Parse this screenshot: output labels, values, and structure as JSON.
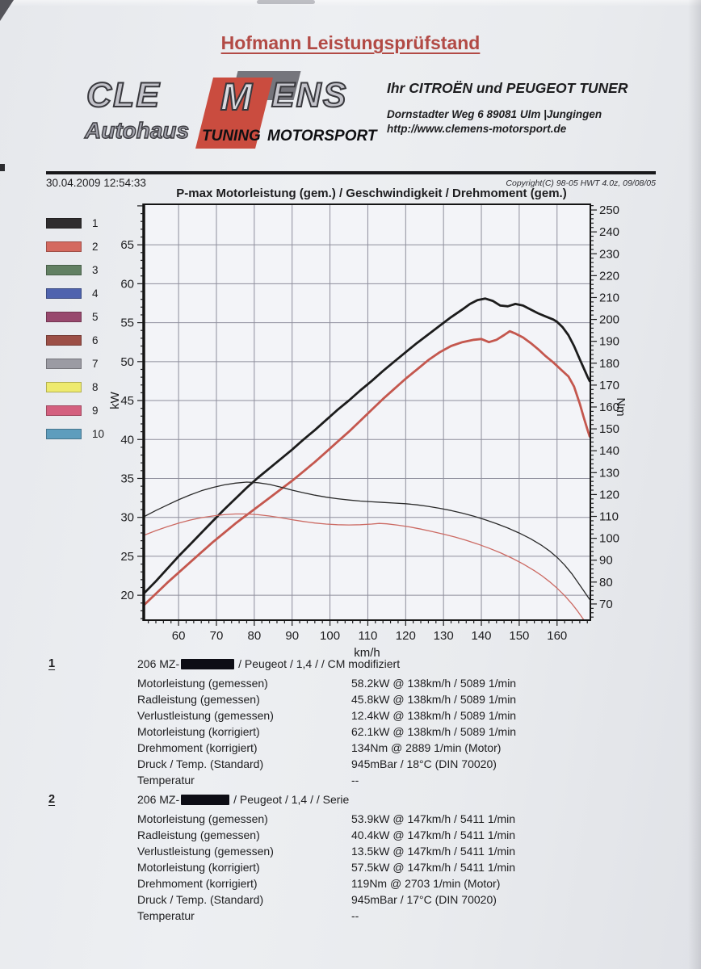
{
  "page": {
    "header_title": "Hofmann Leistungsprüfstand",
    "logo": {
      "cle": "CLE",
      "m": "M",
      "ens": "ENS",
      "autohaus": "Autohaus",
      "tuning": "TUNING",
      "motorsport": "MOTORSPORT"
    },
    "dealer": {
      "line1": "Ihr CITROËN und PEUGEOT TUNER",
      "line2": "Dornstadter Weg 6 89081 Ulm |Jungingen",
      "line3": "http://www.clemens-motorsport.de"
    },
    "datetime": "30.04.2009 12:54:33",
    "copyright": "Copyright(C) 98-05 HWT 4.0z, 09/08/05"
  },
  "chart_data": {
    "type": "line",
    "title": "P-max Motorleistung (gem.) / Geschwindigkeit / Drehmoment (gem.)",
    "xlabel": "km/h",
    "ylabel_left": "kW",
    "ylabel_right": "Nm",
    "grid": true,
    "legend_position": "left-outside",
    "legend": [
      {
        "label": "1",
        "color": "#2f2d2e"
      },
      {
        "label": "2",
        "color": "#d4695f"
      },
      {
        "label": "3",
        "color": "#628063"
      },
      {
        "label": "4",
        "color": "#4f63ae"
      },
      {
        "label": "5",
        "color": "#98486d"
      },
      {
        "label": "6",
        "color": "#9c4f46"
      },
      {
        "label": "7",
        "color": "#9b9ba3"
      },
      {
        "label": "8",
        "color": "#eeea6e"
      },
      {
        "label": "9",
        "color": "#d4607f"
      },
      {
        "label": "10",
        "color": "#5e9dbd"
      }
    ],
    "layout": {
      "x_range": [
        50.8,
        168.8
      ],
      "x_ticks": [
        60,
        70,
        80,
        90,
        100,
        110,
        120,
        130,
        140,
        150,
        160
      ],
      "x_minor_step": 2,
      "kw_range": [
        16.8,
        70.2
      ],
      "kw_ticks": [
        20,
        25,
        30,
        35,
        40,
        45,
        50,
        55,
        60,
        65
      ],
      "kw_minor_step": 1,
      "nm_range": [
        62.6,
        252.6
      ],
      "nm_ticks": [
        70,
        80,
        90,
        100,
        110,
        120,
        130,
        140,
        150,
        160,
        170,
        180,
        190,
        200,
        210,
        220,
        230,
        240,
        250
      ],
      "nm_minor_step": 2
    },
    "series": [
      {
        "name": "Motorleistung 1 (CM modifiziert)",
        "legend": "1",
        "axis": "kw",
        "color": "#1c1c1c",
        "width": 2.8,
        "points": [
          [
            51,
            20.3
          ],
          [
            54,
            21.8
          ],
          [
            57,
            23.4
          ],
          [
            60,
            25
          ],
          [
            63,
            26.5
          ],
          [
            66,
            28
          ],
          [
            69,
            29.5
          ],
          [
            72,
            31
          ],
          [
            75,
            32.4
          ],
          [
            78,
            33.8
          ],
          [
            81,
            35.1
          ],
          [
            84,
            36.3
          ],
          [
            87,
            37.5
          ],
          [
            90,
            38.7
          ],
          [
            93,
            40
          ],
          [
            96,
            41.2
          ],
          [
            99,
            42.5
          ],
          [
            102,
            43.8
          ],
          [
            105,
            45
          ],
          [
            108,
            46.3
          ],
          [
            111,
            47.5
          ],
          [
            114,
            48.8
          ],
          [
            117,
            50
          ],
          [
            120,
            51.2
          ],
          [
            123,
            52.4
          ],
          [
            126,
            53.5
          ],
          [
            129,
            54.6
          ],
          [
            132,
            55.7
          ],
          [
            135,
            56.7
          ],
          [
            137,
            57.4
          ],
          [
            139,
            57.9
          ],
          [
            141,
            58.1
          ],
          [
            143,
            57.8
          ],
          [
            145,
            57.2
          ],
          [
            147,
            57.1
          ],
          [
            149,
            57.4
          ],
          [
            151,
            57.2
          ],
          [
            153,
            56.7
          ],
          [
            155,
            56.2
          ],
          [
            157,
            55.8
          ],
          [
            159,
            55.4
          ],
          [
            160,
            55.1
          ],
          [
            161.5,
            54.4
          ],
          [
            163,
            53.4
          ],
          [
            164.5,
            52
          ],
          [
            166,
            50.3
          ],
          [
            167,
            49.2
          ],
          [
            168,
            48.1
          ],
          [
            168.6,
            47.5
          ]
        ]
      },
      {
        "name": "Motorleistung 2 (Serie)",
        "legend": "2",
        "axis": "kw",
        "color": "#c4574e",
        "width": 2.8,
        "points": [
          [
            51,
            18.8
          ],
          [
            54,
            20.2
          ],
          [
            57,
            21.6
          ],
          [
            60,
            22.9
          ],
          [
            63,
            24.2
          ],
          [
            66,
            25.5
          ],
          [
            69,
            26.8
          ],
          [
            72,
            28
          ],
          [
            75,
            29.2
          ],
          [
            78,
            30.3
          ],
          [
            81,
            31.4
          ],
          [
            84,
            32.5
          ],
          [
            87,
            33.6
          ],
          [
            90,
            34.7
          ],
          [
            93,
            35.9
          ],
          [
            96,
            37.1
          ],
          [
            99,
            38.4
          ],
          [
            102,
            39.7
          ],
          [
            105,
            41
          ],
          [
            108,
            42.4
          ],
          [
            111,
            43.8
          ],
          [
            114,
            45.2
          ],
          [
            117,
            46.5
          ],
          [
            120,
            47.8
          ],
          [
            123,
            49
          ],
          [
            126,
            50.2
          ],
          [
            129,
            51.2
          ],
          [
            132,
            52
          ],
          [
            135,
            52.5
          ],
          [
            138,
            52.8
          ],
          [
            140,
            52.9
          ],
          [
            142,
            52.5
          ],
          [
            144,
            52.8
          ],
          [
            146,
            53.4
          ],
          [
            147.5,
            53.9
          ],
          [
            149,
            53.6
          ],
          [
            151,
            53.1
          ],
          [
            153,
            52.4
          ],
          [
            155,
            51.6
          ],
          [
            157,
            50.7
          ],
          [
            159,
            49.9
          ],
          [
            161,
            49
          ],
          [
            163,
            48.1
          ],
          [
            164.5,
            46.8
          ],
          [
            166,
            44.6
          ],
          [
            167,
            42.9
          ],
          [
            168,
            41.3
          ],
          [
            168.6,
            40.4
          ]
        ]
      },
      {
        "name": "Drehmoment 1 (CM modifiziert)",
        "legend": "1",
        "axis": "nm",
        "color": "#2a2a2a",
        "width": 1.3,
        "points": [
          [
            51,
            110
          ],
          [
            54,
            112.7
          ],
          [
            57,
            115.2
          ],
          [
            60,
            117.6
          ],
          [
            63,
            119.8
          ],
          [
            66,
            121.7
          ],
          [
            69,
            123.2
          ],
          [
            72,
            124.4
          ],
          [
            75,
            125.2
          ],
          [
            78,
            125.7
          ],
          [
            81,
            125.4
          ],
          [
            84,
            124.6
          ],
          [
            87,
            123.4
          ],
          [
            90,
            122
          ],
          [
            93,
            120.8
          ],
          [
            96,
            119.7
          ],
          [
            99,
            118.8
          ],
          [
            102,
            118.1
          ],
          [
            105,
            117.5
          ],
          [
            108,
            117
          ],
          [
            111,
            116.7
          ],
          [
            114,
            116.4
          ],
          [
            117,
            116.1
          ],
          [
            120,
            115.8
          ],
          [
            123,
            115.3
          ],
          [
            126,
            114.6
          ],
          [
            129,
            113.7
          ],
          [
            132,
            112.7
          ],
          [
            135,
            111.5
          ],
          [
            138,
            110.1
          ],
          [
            141,
            108.5
          ],
          [
            144,
            106.7
          ],
          [
            147,
            104.7
          ],
          [
            150,
            102.4
          ],
          [
            153,
            99.8
          ],
          [
            156,
            96.7
          ],
          [
            158,
            94.2
          ],
          [
            160,
            91.3
          ],
          [
            162,
            87.8
          ],
          [
            164,
            83.6
          ],
          [
            165.5,
            79.9
          ],
          [
            167,
            76.1
          ],
          [
            168,
            73.6
          ],
          [
            168.6,
            72.1
          ]
        ]
      },
      {
        "name": "Drehmoment 2 (Serie)",
        "legend": "2",
        "axis": "nm",
        "color": "#cc6a63",
        "width": 1.3,
        "points": [
          [
            51,
            101.5
          ],
          [
            54,
            103.5
          ],
          [
            57,
            105.3
          ],
          [
            60,
            106.9
          ],
          [
            63,
            108.3
          ],
          [
            66,
            109.4
          ],
          [
            69,
            110.2
          ],
          [
            72,
            110.8
          ],
          [
            75,
            111.1
          ],
          [
            78,
            111.1
          ],
          [
            81,
            110.8
          ],
          [
            84,
            110.2
          ],
          [
            87,
            109.4
          ],
          [
            90,
            108.5
          ],
          [
            93,
            107.7
          ],
          [
            96,
            107
          ],
          [
            99,
            106.5
          ],
          [
            102,
            106.2
          ],
          [
            105,
            106.1
          ],
          [
            108,
            106.2
          ],
          [
            111,
            106.5
          ],
          [
            113,
            106.8
          ],
          [
            115,
            106.6
          ],
          [
            118,
            106
          ],
          [
            121,
            105.2
          ],
          [
            124,
            104.2
          ],
          [
            127,
            103.1
          ],
          [
            130,
            101.9
          ],
          [
            133,
            100.6
          ],
          [
            136,
            99.1
          ],
          [
            139,
            97.4
          ],
          [
            142,
            95.5
          ],
          [
            145,
            93.4
          ],
          [
            148,
            91
          ],
          [
            151,
            88.3
          ],
          [
            154,
            85.2
          ],
          [
            156,
            82.9
          ],
          [
            158,
            80.2
          ],
          [
            160,
            77.2
          ],
          [
            162,
            73.8
          ],
          [
            164,
            69.9
          ],
          [
            165.5,
            66.6
          ],
          [
            167,
            62.9
          ],
          [
            167.6,
            61.2
          ]
        ]
      }
    ]
  },
  "results": [
    {
      "index": "1",
      "vehicle_prefix": "206 MZ-",
      "vehicle_suffix": "/ Peugeot / 1,4 /  / CM modifiziert",
      "rows": [
        [
          "Motorleistung (gemessen)",
          "58.2kW @ 138km/h / 5089 1/min"
        ],
        [
          "Radleistung (gemessen)",
          "45.8kW @ 138km/h / 5089 1/min"
        ],
        [
          "Verlustleistung (gemessen)",
          "12.4kW @ 138km/h / 5089 1/min"
        ],
        [
          "Motorleistung (korrigiert)",
          "62.1kW @ 138km/h / 5089 1/min"
        ],
        [
          "Drehmoment (korrigiert)",
          "134Nm @ 2889 1/min (Motor)"
        ],
        [
          "Druck / Temp. (Standard)",
          "945mBar / 18°C  (DIN 70020)"
        ],
        [
          "Temperatur",
          "--"
        ]
      ]
    },
    {
      "index": "2",
      "vehicle_prefix": "206 MZ-",
      "vehicle_suffix": "/ Peugeot / 1,4 /  / Serie",
      "rows": [
        [
          "Motorleistung (gemessen)",
          "53.9kW @ 147km/h / 5411 1/min"
        ],
        [
          "Radleistung (gemessen)",
          "40.4kW @ 147km/h / 5411 1/min"
        ],
        [
          "Verlustleistung (gemessen)",
          "13.5kW @ 147km/h / 5411 1/min"
        ],
        [
          "Motorleistung (korrigiert)",
          "57.5kW @ 147km/h / 5411 1/min"
        ],
        [
          "Drehmoment (korrigiert)",
          "119Nm @ 2703 1/min (Motor)"
        ],
        [
          "Druck / Temp. (Standard)",
          "945mBar / 17°C  (DIN 70020)"
        ],
        [
          "Temperatur",
          "--"
        ]
      ]
    }
  ]
}
